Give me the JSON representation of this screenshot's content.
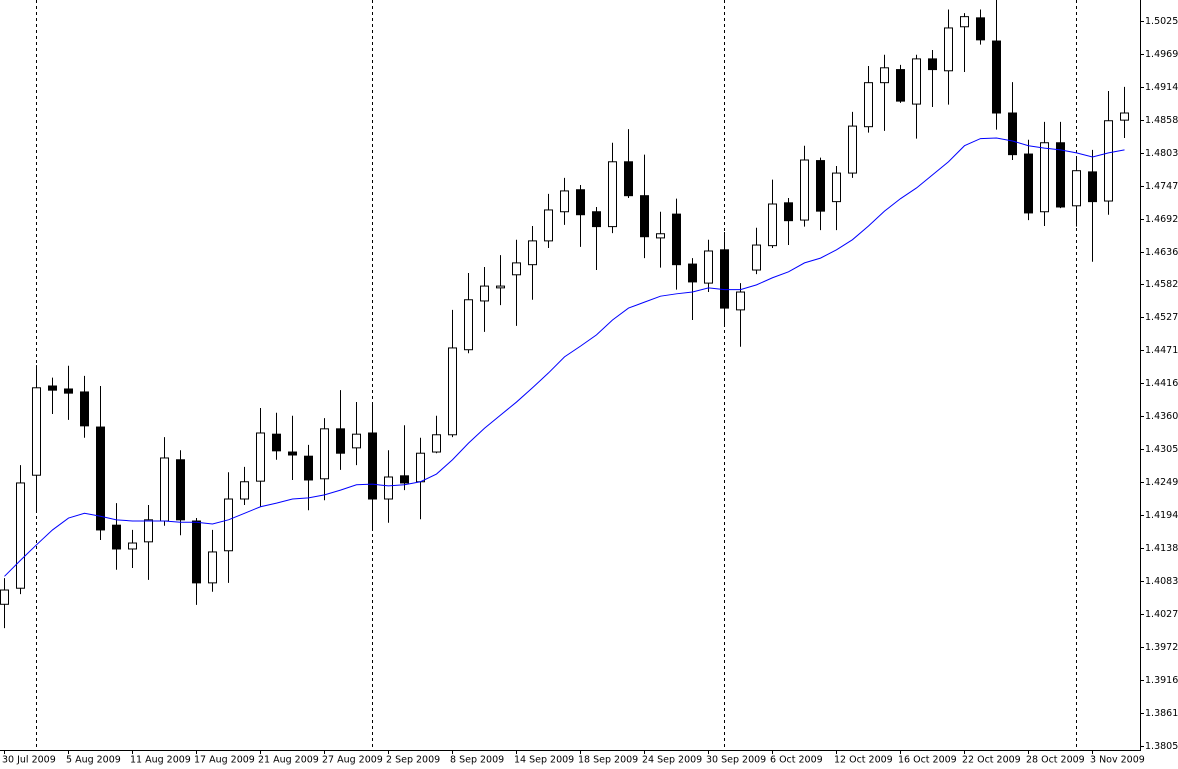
{
  "chart_data": {
    "type": "candlestick",
    "categories": [
      "30 Jul 2009",
      null,
      null,
      null,
      "5 Aug 2009",
      null,
      null,
      null,
      "11 Aug 2009",
      null,
      null,
      null,
      "17 Aug 2009",
      null,
      null,
      null,
      "21 Aug 2009",
      null,
      null,
      null,
      "27 Aug 2009",
      null,
      null,
      null,
      "2 Sep 2009",
      null,
      null,
      null,
      "8 Sep 2009",
      null,
      null,
      null,
      "14 Sep 2009",
      null,
      null,
      null,
      "18 Sep 2009",
      null,
      null,
      null,
      "24 Sep 2009",
      null,
      null,
      null,
      "30 Sep 2009",
      null,
      null,
      null,
      "6 Oct 2009",
      null,
      null,
      null,
      "12 Oct 2009",
      null,
      null,
      null,
      "16 Oct 2009",
      null,
      null,
      null,
      "22 Oct 2009",
      null,
      null,
      null,
      "28 Oct 2009",
      null,
      null,
      null,
      "3 Nov 2009",
      null,
      null
    ],
    "open": [
      1.4044,
      1.4071,
      1.4261,
      1.4411,
      1.4406,
      1.4401,
      1.4342,
      1.4177,
      1.4137,
      1.4149,
      1.4184,
      1.4287,
      1.4184,
      1.408,
      1.4134,
      1.4221,
      1.4251,
      1.433,
      1.43,
      1.4293,
      1.4255,
      1.4339,
      1.4307,
      1.4332,
      1.4221,
      1.426,
      1.425,
      1.43,
      1.4329,
      1.4472,
      1.4554,
      1.4576,
      1.4598,
      1.4615,
      1.4655,
      1.4704,
      1.4741,
      1.4704,
      1.4679,
      1.4788,
      1.4731,
      1.466,
      1.47,
      1.4616,
      1.4584,
      1.464,
      1.4539,
      1.4606,
      1.4647,
      1.4719,
      1.469,
      1.479,
      1.4721,
      1.4769,
      1.4847,
      1.4921,
      1.4943,
      1.4885,
      1.4961,
      1.4941,
      1.5015,
      1.503,
      1.4991,
      1.487,
      1.4801,
      1.4704,
      1.482,
      1.4714,
      1.4771,
      1.4722,
      1.4858
    ],
    "high": [
      1.4088,
      1.4278,
      1.4446,
      1.4425,
      1.4445,
      1.4428,
      1.4411,
      1.4214,
      1.4169,
      1.4211,
      1.4325,
      1.4303,
      1.4189,
      1.4169,
      1.4266,
      1.4275,
      1.4374,
      1.4366,
      1.4361,
      1.4312,
      1.4357,
      1.4404,
      1.4384,
      1.4379,
      1.4303,
      1.4345,
      1.4324,
      1.4361,
      1.4539,
      1.4601,
      1.4611,
      1.4631,
      1.4657,
      1.468,
      1.4734,
      1.4761,
      1.4749,
      1.4712,
      1.482,
      1.4843,
      1.48,
      1.4704,
      1.4726,
      1.4626,
      1.4657,
      1.467,
      1.4584,
      1.4677,
      1.4758,
      1.4727,
      1.4815,
      1.4795,
      1.4781,
      1.4872,
      1.4949,
      1.4968,
      1.4951,
      1.4968,
      1.4976,
      1.5044,
      1.5038,
      1.5044,
      1.506,
      1.4922,
      1.4825,
      1.4855,
      1.4855,
      1.4795,
      1.4808,
      1.4907,
      1.4914
    ],
    "low": [
      1.4004,
      1.4061,
      1.4202,
      1.4364,
      1.4354,
      1.4324,
      1.4152,
      1.4102,
      1.4105,
      1.4085,
      1.4176,
      1.416,
      1.4043,
      1.4065,
      1.408,
      1.4211,
      1.4208,
      1.4287,
      1.4253,
      1.4202,
      1.4219,
      1.427,
      1.4278,
      1.4172,
      1.4181,
      1.4236,
      1.4187,
      1.4298,
      1.4325,
      1.4466,
      1.4502,
      1.4547,
      1.4512,
      1.4556,
      1.4643,
      1.4682,
      1.4645,
      1.4606,
      1.4668,
      1.4727,
      1.4626,
      1.461,
      1.4573,
      1.4522,
      1.4569,
      1.4514,
      1.4477,
      1.4599,
      1.4643,
      1.4648,
      1.4679,
      1.4673,
      1.4673,
      1.4761,
      1.4837,
      1.484,
      1.4887,
      1.4827,
      1.488,
      1.4884,
      1.4939,
      1.4985,
      1.4842,
      1.4791,
      1.469,
      1.468,
      1.471,
      1.4679,
      1.462,
      1.4699,
      1.4828
    ],
    "close": [
      1.4068,
      1.4248,
      1.4408,
      1.4404,
      1.4399,
      1.4344,
      1.4169,
      1.4137,
      1.4147,
      1.4186,
      1.429,
      1.4186,
      1.408,
      1.4132,
      1.4221,
      1.425,
      1.4332,
      1.4302,
      1.4295,
      1.4253,
      1.4339,
      1.4298,
      1.433,
      1.4221,
      1.4258,
      1.4248,
      1.4298,
      1.4329,
      1.4475,
      1.4556,
      1.4579,
      1.4579,
      1.4618,
      1.4655,
      1.4707,
      1.4739,
      1.4699,
      1.4679,
      1.4788,
      1.4731,
      1.4662,
      1.4667,
      1.4615,
      1.4586,
      1.4638,
      1.4542,
      1.4569,
      1.4648,
      1.4717,
      1.4689,
      1.4791,
      1.4705,
      1.4769,
      1.4848,
      1.4921,
      1.4946,
      1.489,
      1.4961,
      1.4943,
      1.5013,
      1.5032,
      1.4993,
      1.487,
      1.48,
      1.4702,
      1.482,
      1.4712,
      1.4773,
      1.4721,
      1.4857,
      1.487
    ],
    "up_color": "#ffffff",
    "down_color": "#000000",
    "ma": {
      "color": "#0000ff",
      "values": [
        1.4091,
        1.4118,
        1.4144,
        1.4169,
        1.4189,
        1.4197,
        1.4192,
        1.4186,
        1.4184,
        1.4184,
        1.4184,
        1.4182,
        1.4182,
        1.4179,
        1.4186,
        1.4197,
        1.4208,
        1.4214,
        1.4221,
        1.4223,
        1.4228,
        1.4236,
        1.4245,
        1.4246,
        1.4243,
        1.4245,
        1.425,
        1.4263,
        1.4287,
        1.4315,
        1.434,
        1.4362,
        1.4384,
        1.4408,
        1.4433,
        1.446,
        1.4478,
        1.4497,
        1.4522,
        1.4542,
        1.4552,
        1.4562,
        1.4566,
        1.4569,
        1.4576,
        1.4573,
        1.4573,
        1.4581,
        1.4593,
        1.4603,
        1.4618,
        1.4626,
        1.464,
        1.4657,
        1.468,
        1.4705,
        1.4726,
        1.4744,
        1.4766,
        1.4788,
        1.4815,
        1.4827,
        1.4828,
        1.4823,
        1.4815,
        1.4811,
        1.4808,
        1.4803,
        1.4796,
        1.4803,
        1.4808
      ]
    },
    "ylim": [
      1.3799,
      1.506
    ],
    "yticks": [
      {
        "value": 1.5025,
        "label": "1.50250"
      },
      {
        "value": 1.49695,
        "label": "1.49695"
      },
      {
        "value": 1.4914,
        "label": "1.49140"
      },
      {
        "value": 1.48585,
        "label": "1.48585"
      },
      {
        "value": 1.4803,
        "label": "1.48030"
      },
      {
        "value": 1.47475,
        "label": "1.47475"
      },
      {
        "value": 1.4692,
        "label": "1.46920"
      },
      {
        "value": 1.46365,
        "label": "1.46365"
      },
      {
        "value": 1.45825,
        "label": "1.45825"
      },
      {
        "value": 1.4527,
        "label": "1.45270"
      },
      {
        "value": 1.44715,
        "label": "1.44715"
      },
      {
        "value": 1.4416,
        "label": "1.44160"
      },
      {
        "value": 1.43605,
        "label": "1.43605"
      },
      {
        "value": 1.4305,
        "label": "1.43050"
      },
      {
        "value": 1.42495,
        "label": "1.42495"
      },
      {
        "value": 1.4194,
        "label": "1.41940"
      },
      {
        "value": 1.41385,
        "label": "1.41385"
      },
      {
        "value": 1.4083,
        "label": "1.40830"
      },
      {
        "value": 1.40275,
        "label": "1.40275"
      },
      {
        "value": 1.3972,
        "label": "1.39720"
      },
      {
        "value": 1.39165,
        "label": "1.39165"
      },
      {
        "value": 1.3861,
        "label": "1.38610"
      },
      {
        "value": 1.38055,
        "label": "1.38055"
      }
    ]
  }
}
